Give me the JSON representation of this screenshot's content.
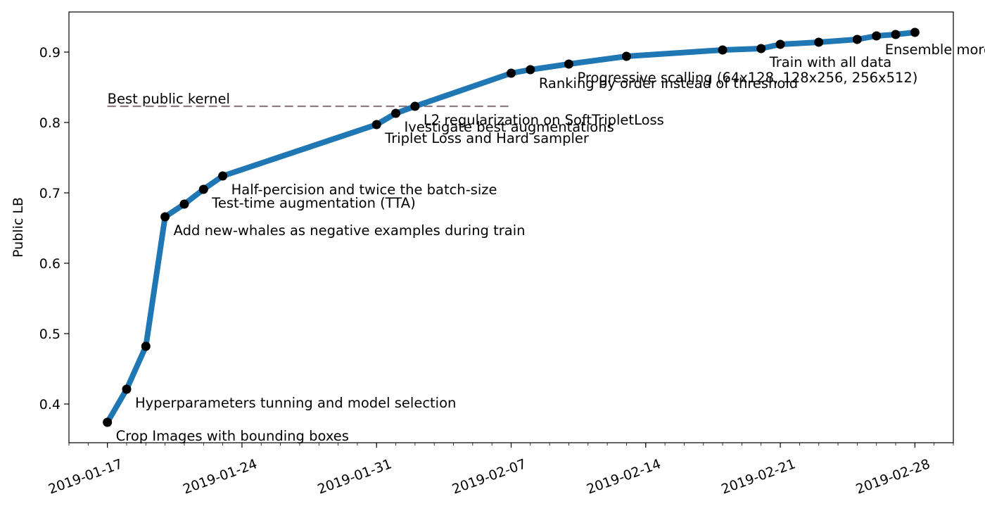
{
  "chart_data": {
    "type": "line",
    "xlabel": "",
    "ylabel": "Public LB",
    "xlim": [
      "2019-01-15",
      "2019-03-02"
    ],
    "ylim": [
      0.345,
      0.957
    ],
    "x_ticks": [
      "2019-01-17",
      "2019-01-24",
      "2019-01-31",
      "2019-02-07",
      "2019-02-14",
      "2019-02-21",
      "2019-02-28"
    ],
    "y_ticks": [
      0.4,
      0.5,
      0.6,
      0.7,
      0.8,
      0.9
    ],
    "grid": false,
    "legend": "none",
    "series": [
      {
        "color": "#1f77b4",
        "marker_color": "#000000",
        "points": [
          {
            "x": "2019-01-17",
            "y": 0.374
          },
          {
            "x": "2019-01-18",
            "y": 0.421
          },
          {
            "x": "2019-01-19",
            "y": 0.482
          },
          {
            "x": "2019-01-20",
            "y": 0.666
          },
          {
            "x": "2019-01-21",
            "y": 0.684
          },
          {
            "x": "2019-01-22",
            "y": 0.705
          },
          {
            "x": "2019-01-23",
            "y": 0.724
          },
          {
            "x": "2019-01-31",
            "y": 0.797
          },
          {
            "x": "2019-02-01",
            "y": 0.813
          },
          {
            "x": "2019-02-02",
            "y": 0.823
          },
          {
            "x": "2019-02-07",
            "y": 0.87
          },
          {
            "x": "2019-02-08",
            "y": 0.875
          },
          {
            "x": "2019-02-10",
            "y": 0.883
          },
          {
            "x": "2019-02-13",
            "y": 0.894
          },
          {
            "x": "2019-02-18",
            "y": 0.903
          },
          {
            "x": "2019-02-20",
            "y": 0.905
          },
          {
            "x": "2019-02-21",
            "y": 0.911
          },
          {
            "x": "2019-02-23",
            "y": 0.914
          },
          {
            "x": "2019-02-25",
            "y": 0.918
          },
          {
            "x": "2019-02-26",
            "y": 0.923
          },
          {
            "x": "2019-02-27",
            "y": 0.925
          },
          {
            "x": "2019-02-28",
            "y": 0.928
          }
        ]
      }
    ],
    "reference_line": {
      "label": "Best public kernel",
      "y": 0.823,
      "x_start": "2019-01-17",
      "x_end": "2019-02-07",
      "color": "#8c7b80",
      "style": "dashed"
    },
    "annotations": [
      {
        "text": "Crop Images with bounding boxes",
        "x": "2019-01-17",
        "y": 0.374
      },
      {
        "text": "Hyperparameters tunning and model selection",
        "x": "2019-01-18",
        "y": 0.421
      },
      {
        "text": "Add new-whales as negative examples during train",
        "x": "2019-01-20",
        "y": 0.666
      },
      {
        "text": "Test-time augmentation (TTA)",
        "x": "2019-01-22",
        "y": 0.705
      },
      {
        "text": "Half-percision and twice the batch-size",
        "x": "2019-01-23",
        "y": 0.724
      },
      {
        "text": "Triplet Loss and Hard sampler",
        "x": "2019-01-31",
        "y": 0.797
      },
      {
        "text": "Ivestigate best augmentations",
        "x": "2019-02-01",
        "y": 0.813
      },
      {
        "text": "L2 regularization on SoftTripletLoss",
        "x": "2019-02-02",
        "y": 0.823
      },
      {
        "text": "Ranking by order instead of threshold",
        "x": "2019-02-08",
        "y": 0.875
      },
      {
        "text": "Progressive scalling (64x128, 128x256, 256x512)",
        "x": "2019-02-10",
        "y": 0.883
      },
      {
        "text": "Train with all data",
        "x": "2019-02-20",
        "y": 0.905
      },
      {
        "text": "Ensemble more models",
        "x": "2019-02-26",
        "y": 0.923
      }
    ]
  }
}
